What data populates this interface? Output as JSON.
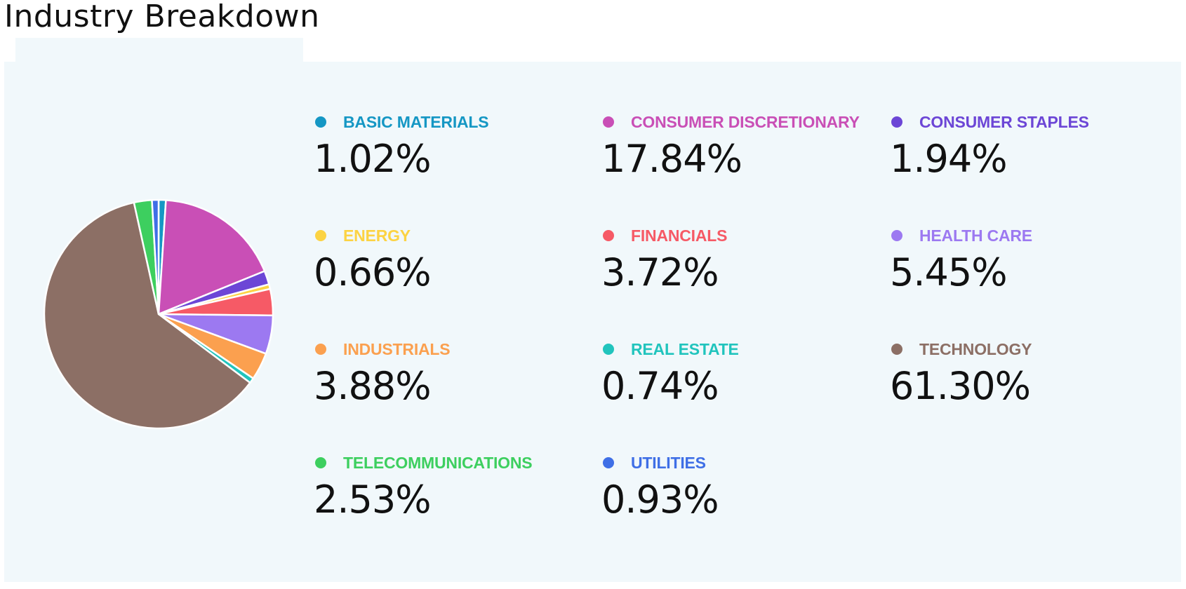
{
  "page": {
    "title": "Industry Breakdown"
  },
  "chart_data": {
    "type": "pie",
    "title": "Industry Breakdown",
    "start_angle_deg": 0,
    "direction": "clockwise",
    "slices": [
      {
        "label": "BASIC MATERIALS",
        "value": 1.02,
        "display": "1.02%",
        "color": "#1597c4"
      },
      {
        "label": "CONSUMER DISCRETIONARY",
        "value": 17.84,
        "display": "17.84%",
        "color": "#c94fb6"
      },
      {
        "label": "CONSUMER STAPLES",
        "value": 1.94,
        "display": "1.94%",
        "color": "#6c46d6"
      },
      {
        "label": "ENERGY",
        "value": 0.66,
        "display": "0.66%",
        "color": "#fcd343"
      },
      {
        "label": "FINANCIALS",
        "value": 3.72,
        "display": "3.72%",
        "color": "#f65a66"
      },
      {
        "label": "HEALTH CARE",
        "value": 5.45,
        "display": "5.45%",
        "color": "#9c79f1"
      },
      {
        "label": "INDUSTRIALS",
        "value": 3.88,
        "display": "3.88%",
        "color": "#fba04f"
      },
      {
        "label": "REAL ESTATE",
        "value": 0.74,
        "display": "0.74%",
        "color": "#21c4bd"
      },
      {
        "label": "TECHNOLOGY",
        "value": 61.3,
        "display": "61.30%",
        "color": "#8c6f65"
      },
      {
        "label": "TELECOMMUNICATIONS",
        "value": 2.53,
        "display": "2.53%",
        "color": "#3dcf5f"
      },
      {
        "label": "UTILITIES",
        "value": 0.93,
        "display": "0.93%",
        "color": "#3f6fe6"
      }
    ],
    "legend": "right"
  }
}
